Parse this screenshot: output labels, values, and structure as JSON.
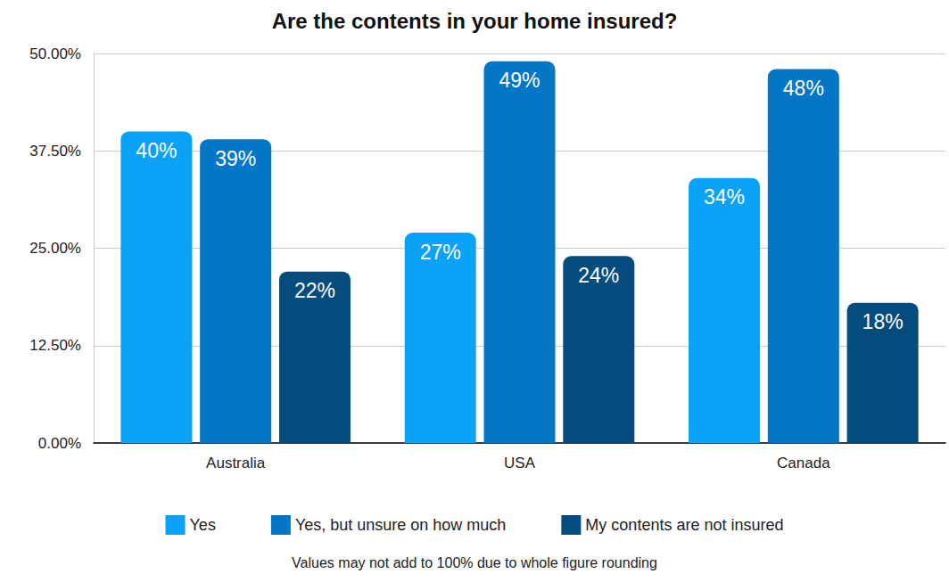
{
  "chart_data": {
    "type": "bar",
    "title": "Are the contents in your home insured?",
    "categories": [
      "Australia",
      "USA",
      "Canada"
    ],
    "series": [
      {
        "name": "Yes",
        "color": "#0aa2f7",
        "values": [
          40,
          27,
          34
        ],
        "value_labels": [
          "40%",
          "27%",
          "34%"
        ]
      },
      {
        "name": "Yes, but unsure on how much",
        "color": "#0476c6",
        "values": [
          39,
          49,
          48
        ],
        "value_labels": [
          "39%",
          "49%",
          "48%"
        ]
      },
      {
        "name": "My contents are not insured",
        "color": "#044c7e",
        "values": [
          22,
          24,
          18
        ],
        "value_labels": [
          "22%",
          "24%",
          "18%"
        ]
      }
    ],
    "ylim": [
      0,
      50
    ],
    "yticks": [
      {
        "value": 0,
        "label": "0.00%"
      },
      {
        "value": 12.5,
        "label": "12.50%"
      },
      {
        "value": 25,
        "label": "25.00%"
      },
      {
        "value": 37.5,
        "label": "37.50%"
      },
      {
        "value": 50,
        "label": "50.00%"
      }
    ],
    "grid": true,
    "legend": "bottom",
    "data_labels": true,
    "annotations": [
      "Values may not add to 100% due to whole figure rounding"
    ]
  }
}
